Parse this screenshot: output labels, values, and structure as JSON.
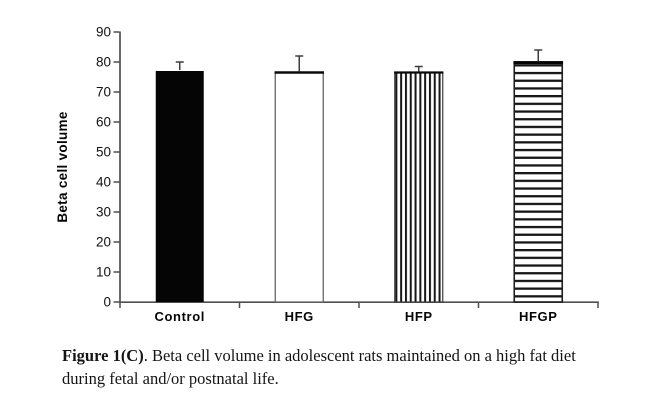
{
  "figure": {
    "caption_bold": "Figure 1(C)",
    "caption_rest": ". Beta cell volume in adolescent rats maintained on a high fat diet during fetal and/or postnatal life."
  },
  "chart_data": {
    "type": "bar",
    "title": "",
    "xlabel": "",
    "ylabel": "Beta cell volume",
    "categories": [
      "Control",
      "HFG",
      "HFP",
      "HFGP"
    ],
    "values": [
      77,
      76.5,
      76.5,
      80
    ],
    "errors_up": [
      3,
      5.5,
      2,
      4
    ],
    "bar_styles": [
      "solid",
      "open",
      "vertical-stripes",
      "horizontal-stripes"
    ],
    "ylim": [
      0,
      90
    ],
    "ytick_step": 10,
    "yticks": [
      0,
      10,
      20,
      30,
      40,
      50,
      60,
      70,
      80,
      90
    ],
    "grid": false,
    "legend": "none",
    "colors": {
      "bar_fill": "#050505",
      "axis": "#4f4f4f",
      "text": "#111111",
      "background": "#ffffff"
    }
  }
}
